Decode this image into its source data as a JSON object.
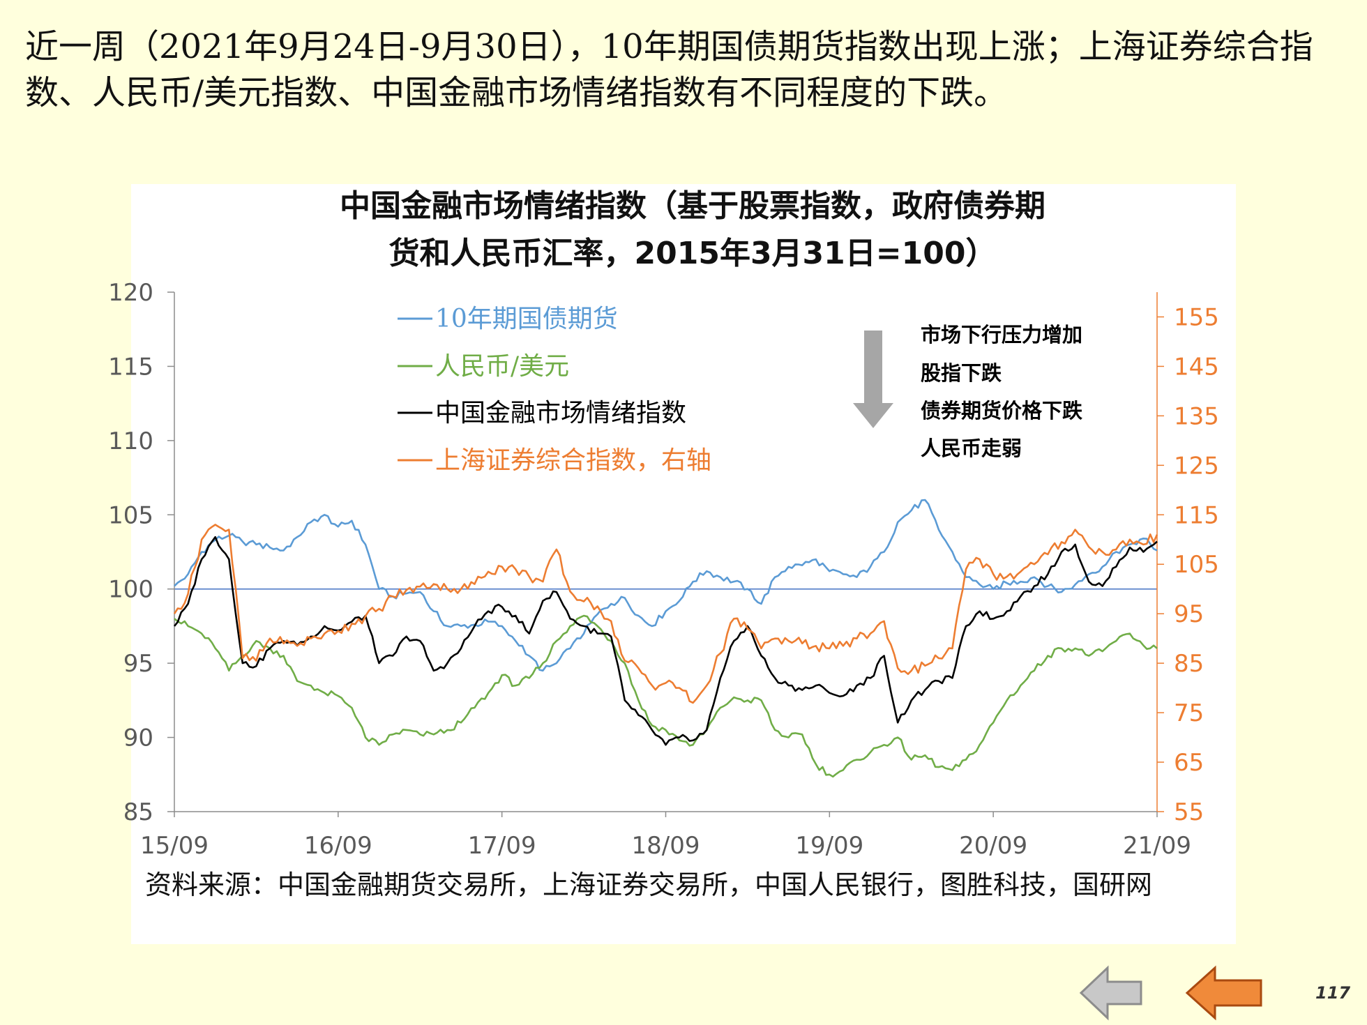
{
  "headline": "近一周（2021年9月24日-9月30日），10年期国债期货指数出现上涨；上海证券综合指数、人民币/美元指数、中国金融市场情绪指数有不同程度的下跌。",
  "source_note": "资料来源：中国金融期货交易所，上海证券交易所，中国人民银行，图胜科技，国研网",
  "page_number": "117",
  "nav": {
    "prev_icon": "left-arrow-gray",
    "next_icon": "left-arrow-orange"
  },
  "colors": {
    "background": "#FFFFDD",
    "bond": "#5B9BD5",
    "rmb": "#70AD47",
    "sentiment": "#000000",
    "shcomp": "#ED7D31",
    "right_axis": "#ED7D31",
    "baseline": "#4472C4",
    "annotation_arrow": "#A6A6A6"
  },
  "chart_data": {
    "type": "line",
    "title_line1": "中国金融市场情绪指数（基于股票指数，政府债券期",
    "title_line2": "货和人民币汇率，2015年3月31日=100）",
    "x_ticks": [
      "15/09",
      "16/09",
      "17/09",
      "18/09",
      "19/09",
      "20/09",
      "21/09"
    ],
    "x_range": [
      "2015-09",
      "2021-09"
    ],
    "y_left": {
      "range": [
        85,
        120
      ],
      "ticks": [
        120,
        115,
        110,
        105,
        100,
        95,
        90,
        85
      ]
    },
    "y_right": {
      "range": [
        55,
        160
      ],
      "ticks": [
        155,
        145,
        135,
        125,
        115,
        105,
        95,
        85,
        75,
        65,
        55
      ]
    },
    "reference_line": 100,
    "legend_position": "top-left",
    "annotation": {
      "lines": [
        "市场下行压力增加",
        "股指下跌",
        "债券期货价格下跌",
        "人民币走弱"
      ],
      "arrow": "down"
    },
    "x": [
      "2015-09",
      "2015-10",
      "2015-11",
      "2015-12",
      "2016-01",
      "2016-02",
      "2016-03",
      "2016-04",
      "2016-05",
      "2016-06",
      "2016-07",
      "2016-08",
      "2016-09",
      "2016-10",
      "2016-11",
      "2016-12",
      "2017-01",
      "2017-02",
      "2017-03",
      "2017-04",
      "2017-05",
      "2017-06",
      "2017-07",
      "2017-08",
      "2017-09",
      "2017-10",
      "2017-11",
      "2017-12",
      "2018-01",
      "2018-02",
      "2018-03",
      "2018-04",
      "2018-05",
      "2018-06",
      "2018-07",
      "2018-08",
      "2018-09",
      "2018-10",
      "2018-11",
      "2018-12",
      "2019-01",
      "2019-02",
      "2019-03",
      "2019-04",
      "2019-05",
      "2019-06",
      "2019-07",
      "2019-08",
      "2019-09",
      "2019-10",
      "2019-11",
      "2019-12",
      "2020-01",
      "2020-02",
      "2020-03",
      "2020-04",
      "2020-05",
      "2020-06",
      "2020-07",
      "2020-08",
      "2020-09",
      "2020-10",
      "2020-11",
      "2020-12",
      "2021-01",
      "2021-02",
      "2021-03",
      "2021-04",
      "2021-05",
      "2021-06",
      "2021-07",
      "2021-08",
      "2021-09"
    ],
    "series": [
      {
        "name": "10年期国债期货",
        "axis": "left",
        "color": "#5B9BD5",
        "values": [
          100.2,
          101.0,
          102.5,
          103.3,
          103.6,
          103.2,
          103.0,
          102.8,
          102.6,
          103.5,
          104.5,
          105.0,
          104.2,
          104.6,
          103.0,
          100.0,
          99.5,
          99.7,
          99.8,
          98.5,
          97.5,
          97.5,
          97.6,
          97.8,
          97.5,
          96.5,
          95.5,
          94.5,
          95.0,
          96.0,
          97.0,
          98.3,
          99.0,
          99.4,
          98.2,
          97.5,
          98.5,
          99.2,
          100.5,
          101.2,
          100.8,
          100.5,
          100.0,
          99.0,
          100.8,
          101.5,
          101.6,
          102.0,
          101.2,
          101.0,
          100.8,
          101.5,
          102.5,
          104.5,
          105.3,
          106.0,
          104.0,
          102.5,
          100.8,
          100.3,
          100.0,
          100.4,
          100.5,
          100.8,
          100.2,
          99.8,
          100.3,
          101.0,
          101.5,
          102.5,
          103.0,
          103.4,
          102.6
        ]
      },
      {
        "name": "人民币/美元",
        "axis": "left",
        "color": "#70AD47",
        "values": [
          98.0,
          97.5,
          97.0,
          96.0,
          94.5,
          95.5,
          96.5,
          96.0,
          95.5,
          93.8,
          93.5,
          93.0,
          92.8,
          92.0,
          90.0,
          89.5,
          90.2,
          90.5,
          90.2,
          90.2,
          90.5,
          91.0,
          92.0,
          93.0,
          94.2,
          93.5,
          94.0,
          95.0,
          96.5,
          97.5,
          98.2,
          97.5,
          96.5,
          95.0,
          92.5,
          90.8,
          90.5,
          89.8,
          89.5,
          90.5,
          92.0,
          92.7,
          92.5,
          92.5,
          90.5,
          90.0,
          90.2,
          88.2,
          87.5,
          87.8,
          88.5,
          89.0,
          89.5,
          90.0,
          88.5,
          88.8,
          88.0,
          87.8,
          88.5,
          89.5,
          91.0,
          92.5,
          93.5,
          94.5,
          95.5,
          96.0,
          96.0,
          95.5,
          95.8,
          96.5,
          97.0,
          96.2,
          96.0
        ]
      },
      {
        "name": "中国金融市场情绪指数",
        "axis": "left",
        "color": "#000000",
        "values": [
          97.5,
          99.0,
          102.0,
          103.5,
          102.0,
          95.0,
          94.8,
          96.0,
          96.5,
          96.2,
          96.8,
          97.5,
          97.2,
          97.8,
          98.2,
          95.0,
          95.5,
          96.8,
          96.5,
          94.5,
          95.0,
          96.0,
          97.5,
          98.5,
          98.8,
          98.2,
          97.0,
          99.2,
          99.8,
          98.0,
          97.5,
          97.0,
          96.8,
          92.5,
          91.5,
          90.5,
          89.5,
          90.0,
          89.8,
          90.5,
          94.0,
          96.5,
          97.5,
          95.5,
          94.0,
          93.5,
          93.2,
          93.5,
          93.0,
          92.8,
          93.5,
          94.0,
          95.5,
          91.0,
          92.5,
          93.2,
          93.8,
          94.0,
          97.5,
          98.5,
          98.0,
          98.5,
          99.5,
          100.2,
          101.0,
          102.5,
          103.0,
          100.5,
          100.2,
          101.5,
          102.8,
          102.5,
          103.2
        ]
      },
      {
        "name": "上海证券综合指数，右轴",
        "axis": "right",
        "color": "#ED7D31",
        "values": [
          95.0,
          99.0,
          110.0,
          113.0,
          112.0,
          86.0,
          85.5,
          90.0,
          89.0,
          88.5,
          90.0,
          91.0,
          91.5,
          93.0,
          94.5,
          96.0,
          98.5,
          99.8,
          100.5,
          101.0,
          100.0,
          100.0,
          101.0,
          103.5,
          104.5,
          104.0,
          102.5,
          101.5,
          108.0,
          99.5,
          97.5,
          96.5,
          93.5,
          85.5,
          84.0,
          80.5,
          81.0,
          80.0,
          77.0,
          80.5,
          87.0,
          94.0,
          92.0,
          88.0,
          90.0,
          89.5,
          89.0,
          88.5,
          88.0,
          88.5,
          90.0,
          91.0,
          93.5,
          84.0,
          83.5,
          84.5,
          86.0,
          88.0,
          104.0,
          106.0,
          103.0,
          102.5,
          103.5,
          105.0,
          107.0,
          109.5,
          112.0,
          108.5,
          107.5,
          108.0,
          110.0,
          109.0,
          111.0
        ]
      }
    ]
  }
}
